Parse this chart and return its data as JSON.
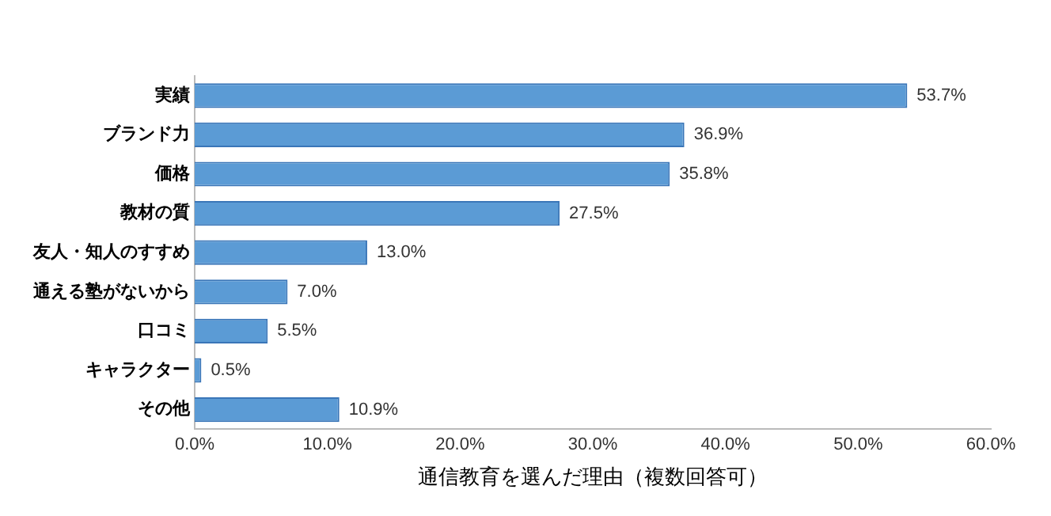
{
  "chart_data": {
    "type": "bar",
    "orientation": "horizontal",
    "xlabel": "通信教育を選んだ理由（複数回答可）",
    "categories": [
      "実績",
      "ブランド力",
      "価格",
      "教材の質",
      "友人・知人のすすめ",
      "通える塾がないから",
      "口コミ",
      "キャラクター",
      "その他"
    ],
    "values": [
      53.7,
      36.9,
      35.8,
      27.5,
      13.0,
      7.0,
      5.5,
      0.5,
      10.9
    ],
    "value_labels": [
      "53.7%",
      "36.9%",
      "35.8%",
      "27.5%",
      "13.0%",
      "7.0%",
      "5.5%",
      "0.5%",
      "10.9%"
    ],
    "color": "#5b9bd5",
    "xlim": [
      0,
      60
    ],
    "xticks": [
      {
        "value": 0,
        "label": "0.0%"
      },
      {
        "value": 10,
        "label": "10.0%"
      },
      {
        "value": 20,
        "label": "20.0%"
      },
      {
        "value": 30,
        "label": "30.0%"
      },
      {
        "value": 40,
        "label": "40.0%"
      },
      {
        "value": 50,
        "label": "50.0%"
      },
      {
        "value": 60,
        "label": "60.0%"
      }
    ],
    "grid": false,
    "legend": false
  }
}
